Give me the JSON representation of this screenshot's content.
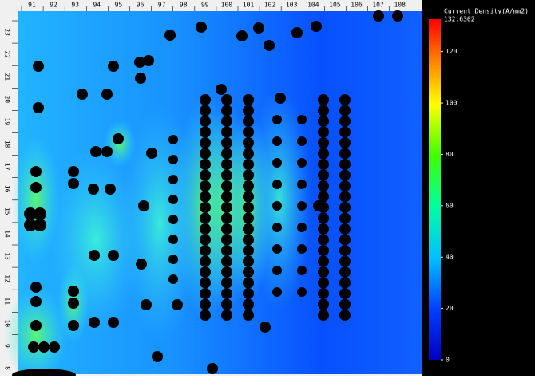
{
  "ruler_top": {
    "labels": [
      "91",
      "92",
      "93",
      "94",
      "95",
      "96",
      "97",
      "98",
      "99",
      "100",
      "101",
      "102",
      "103",
      "104",
      "105",
      "106",
      "107",
      "108"
    ]
  },
  "ruler_left": {
    "labels": [
      "23",
      "22",
      "21",
      "20",
      "19",
      "18",
      "17",
      "16",
      "15",
      "14",
      "13",
      "12",
      "11",
      "10",
      "9",
      "8"
    ]
  },
  "colorbar": {
    "title": "Current Density(A/mm2)",
    "max": 132.6302,
    "ticks": [
      0,
      20,
      40,
      60,
      80,
      100,
      120
    ]
  }
}
